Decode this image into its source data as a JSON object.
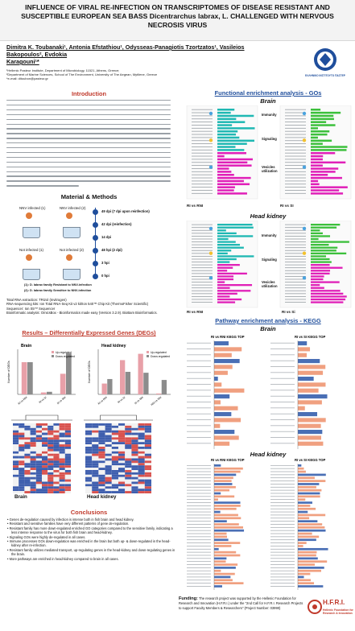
{
  "poster": {
    "title_line1": "INFLUENCE OF VIRAL RE-INFECTION ON TRANSCRIPTOMES OF DISEASE RESISTANT AND",
    "title_line2": "SUSCEPTIBLE EUROPEAN SEA BASS Dicentrarchus labrax, L. CHALLENGED WITH NERVOUS",
    "title_line3": "NECROSIS VIRUS",
    "authors_line1": "Dimitra K. Toubanaki¹, Antonia Efstathiou¹, Odysseas-Panagiotis Tzortzatos¹, Vasileios Bakopoulos², Evdokia",
    "authors_line2": "Karagouni¹*",
    "affil1": "¹Hellenic Pasteur Institute, Department of Microbiology, 11521, Athens, Greece;",
    "affil2": "²Department of Marine Sciences, School of The Environment, University of The Aegean, Mytilene, Greece",
    "email": "*e-mail: ditoubon@pasteur.gr",
    "institute_logo_text": "ΕΛΛΗΝΙΚΟ ΙΝΣΤΙΤΟΥΤΟ ΠΑΣΤΕΡ"
  },
  "intro": {
    "heading": "Introduction"
  },
  "methods": {
    "heading": "Material & Methods",
    "group_labels": [
      "NNV infected (1)",
      "NNV infected (2)",
      "Not infected (1)",
      "Not infected (2)"
    ],
    "timepoints": [
      "49 dpi (7 dpi upon reinfection)",
      "42 dpi (reinfection)",
      "14 dpi",
      "48 hpi (2 dpi)",
      "3 hpi",
      "0 hpi"
    ],
    "legend1": "(1): D. labrax family Resistant to NNV-infection",
    "legend2": "(2): D. labrax family Sensitive to NNV-infection",
    "rna_extraction": "Total RNA extraction: TRIzol (Invitrogen)",
    "rna_seq_kits": "RNA-sequencing kits: Ion Total RNA-Seq Kit v2 kit/Ion 540™ Chip Kit (ThermoFisher Scientific)",
    "sequencer": "Sequencer: Ion S5™ Sequencer",
    "bioinformatic": "Bioinformatic analysis: OmicsBox - Bioinformatics made easy (Version 3.2.9). BioBam Bioinformatics."
  },
  "results": {
    "heading": "Results – Differentially Expressed Genes (DEGs)",
    "brain_label": "Brain",
    "headkidney_label": "Head kidney",
    "y_axis": "Number of DEGs",
    "legend_up": "Up-regulated",
    "legend_down": "Down-regulated",
    "heatmap_brain": "Brain",
    "heatmap_hk": "Head kidney"
  },
  "chart_data": [
    {
      "type": "bar",
      "title": "Brain",
      "ylabel": "Number of DEGs",
      "categories": [
        "RI vs RNI",
        "RI vs SI",
        "SI vs SNI"
      ],
      "series": [
        {
          "name": "Up-regulated",
          "values": [
            250,
            15,
            160
          ]
        },
        {
          "name": "Down-regulated",
          "values": [
            250,
            20,
            320
          ]
        }
      ],
      "ylim": [
        0,
        350
      ]
    },
    {
      "type": "bar",
      "title": "Head kidney",
      "ylabel": "Number of DEGs",
      "categories": [
        "RI vs RNI",
        "RI vs SI",
        "SI vs SNI",
        "RNI vs SNI"
      ],
      "series": [
        {
          "name": "Up-regulated",
          "values": [
            120,
            380,
            450,
            10
          ]
        },
        {
          "name": "Down-regulated",
          "values": [
            170,
            250,
            240,
            160
          ]
        }
      ],
      "ylim": [
        0,
        500
      ]
    }
  ],
  "enrichment": {
    "go_heading": "Functional enrichment analysis - GOs",
    "kegg_heading": "Pathway enrichment analysis - KEGG",
    "brain": "Brain",
    "head_kidney": "Head kidney",
    "side_labels": [
      "Immunity",
      "Signaling",
      "Vesicles utilization"
    ],
    "panel_labels_top": [
      "RI vs RNI",
      "RI vs SI"
    ],
    "panel_labels_bottom": [
      "RI vs RNI",
      "RI vs Si"
    ],
    "kegg_panels": [
      "RI vs RNI KEGG TOP",
      "RI vs SI KEGG TOP",
      "RI vs RNI KEGG TOP",
      "RI vs SI KEGG TOP"
    ]
  },
  "conclusions": {
    "heading": "Conclusions",
    "bullets": [
      "Genes de-regulation caused by infection is intense both in fish brain and head kidney.",
      "Resistant and sensitive families have very different patterns of gene de-regulation.",
      "Resistant family has more down-regulated enriched GO categories compared to the sensitive family, indicating a less intense response to the virus for both fish brain and head-kidney.",
      "Signaling GOs were highly de-regulated in all cases.",
      "Immune processes GOs down-regulation was enriched in the brain but both up- & down-regulated in the head-kidney after re-infection.",
      "Resistant family utilizes mediated transport, up-regulating genes in the head-kidney and down-regulating genes in the brain.",
      "More pathways are enriched in head-kidney compared to brain in all cases."
    ]
  },
  "funding": {
    "label": "Funding:",
    "text": "The research project was supported by the Hellenic Foundation for Research and Innovation (H.F.R.I.) under the \"2nd Call for H.F.R.I. Research Projects to support Faculty Members & Researchers\" (Project Number: 03990)"
  },
  "hfri": {
    "logo": "H.F.R.I.",
    "sub1": "Hellenic Foundation for",
    "sub2": "Research & Innovation"
  },
  "colors": {
    "accent_red": "#c0392b",
    "accent_blue": "#1f4e9c",
    "bar_up": "#e8a0a8",
    "bar_down": "#8c8c8c",
    "go_teal": "#1fb8b3",
    "go_magenta": "#e020b8",
    "go_green": "#3cc03c",
    "kegg_salmon": "#f0a080",
    "kegg_blue": "#4a6fb5"
  }
}
